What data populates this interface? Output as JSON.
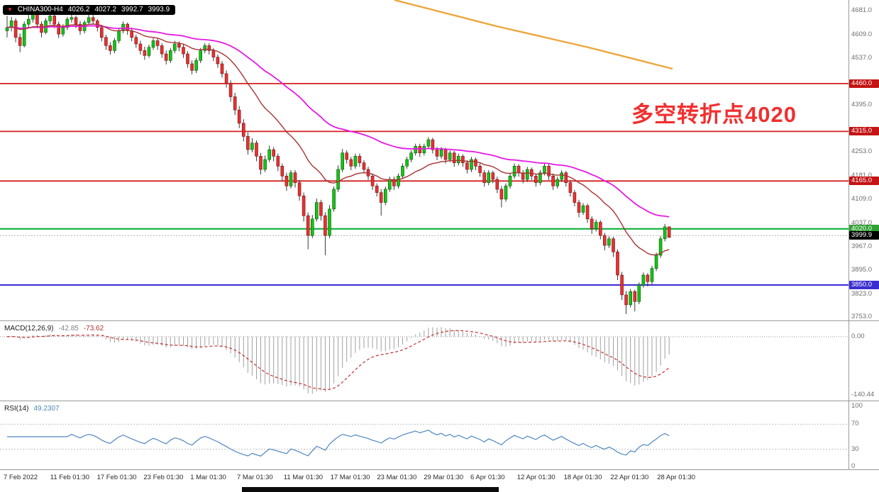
{
  "header": {
    "symbol": "CHINA300-H4",
    "open": "4026.2",
    "high": "4027.2",
    "low": "3992.7",
    "close": "3993.9"
  },
  "annotation": {
    "text": "多空转折点4020",
    "color": "#f12f2f"
  },
  "price_axis": {
    "ticks": [
      {
        "value": 4681,
        "label": "4681.0"
      },
      {
        "value": 4609,
        "label": "4609.0"
      },
      {
        "value": 4537,
        "label": "4537.0"
      },
      {
        "value": 4395,
        "label": "4395.0"
      },
      {
        "value": 4253,
        "label": "4253.0"
      },
      {
        "value": 4181,
        "label": "4181.0"
      },
      {
        "value": 4109,
        "label": "4109.0"
      },
      {
        "value": 4037,
        "label": "4037.0"
      },
      {
        "value": 3967,
        "label": "3967.0"
      },
      {
        "value": 3895,
        "label": "3895.0"
      },
      {
        "value": 3823,
        "label": "3823.0"
      },
      {
        "value": 3753,
        "label": "3753.0"
      }
    ],
    "current": {
      "price": 3999.9,
      "label": "3999.9",
      "badge": "#000000"
    }
  },
  "levels": [
    {
      "price": 4460,
      "label": "4460.0",
      "color": "#d42020",
      "badge": "#c41414",
      "width": 1.8
    },
    {
      "price": 4315,
      "label": "4315.0",
      "color": "#d42020",
      "badge": "#c41414",
      "width": 1.8
    },
    {
      "price": 4165,
      "label": "4165.0",
      "color": "#d42020",
      "badge": "#c41414",
      "width": 1.8
    },
    {
      "price": 4020,
      "label": "4020.0",
      "color": "#0faf3c",
      "badge": "#2fa133",
      "width": 2.2
    },
    {
      "price": 3850,
      "label": "3850.0",
      "color": "#4634d8",
      "badge": "#3b2ed0",
      "width": 2.2
    }
  ],
  "time_axis": {
    "labels": [
      "7 Feb 2022",
      "11 Feb 01:30",
      "17 Feb 01:30",
      "23 Feb 01:30",
      "1 Mar 01:30",
      "7 Mar 01:30",
      "11 Mar 01:30",
      "17 Mar 01:30",
      "23 Mar 01:30",
      "29 Mar 01:30",
      "6 Apr 01:30",
      "12 Apr 01:30",
      "18 Apr 01:30",
      "22 Apr 01:30",
      "28 Apr 01:30"
    ]
  },
  "macd_panel": {
    "label": "MACD(12,26,9)",
    "value_main": "-42.85",
    "value_signal": "-73.62",
    "axis_zero": "0.00",
    "axis_min": "-140.44",
    "fast": 12,
    "slow": 26,
    "signal_period": 9
  },
  "rsi_panel": {
    "label": "RSI(14)",
    "value": "49.2307",
    "period": 14,
    "level_lines": [
      70,
      30
    ],
    "axis": [
      {
        "value": 100,
        "label": "100"
      },
      {
        "value": 70,
        "label": "70"
      },
      {
        "value": 30,
        "label": "30"
      },
      {
        "value": 0,
        "label": "0"
      }
    ]
  },
  "chart_data": {
    "type": "candlestick",
    "symbol": "CHINA300",
    "timeframe": "H4",
    "title": "CHINA300-H4",
    "price_range": [
      3753,
      4681
    ],
    "support_resistance": [
      4460,
      4315,
      4165,
      4020,
      3850
    ],
    "last_price": 3999.9,
    "ohlc_current": [
      4026.2,
      4027.2,
      3992.7,
      3993.9
    ],
    "ma_fast_period": 20,
    "ma_slow_period": 55,
    "trendline_color": "#eda53a",
    "candles": [
      [
        4620,
        4665,
        4600,
        4630
      ],
      [
        4630,
        4662,
        4618,
        4650
      ],
      [
        4650,
        4658,
        4585,
        4600
      ],
      [
        4600,
        4612,
        4555,
        4575
      ],
      [
        4575,
        4648,
        4570,
        4640
      ],
      [
        4640,
        4668,
        4628,
        4655
      ],
      [
        4655,
        4681,
        4645,
        4670
      ],
      [
        4670,
        4675,
        4628,
        4640
      ],
      [
        4640,
        4648,
        4600,
        4615
      ],
      [
        4615,
        4658,
        4610,
        4650
      ],
      [
        4650,
        4675,
        4640,
        4665
      ],
      [
        4665,
        4670,
        4628,
        4640
      ],
      [
        4640,
        4648,
        4598,
        4610
      ],
      [
        4610,
        4640,
        4602,
        4630
      ],
      [
        4630,
        4662,
        4622,
        4655
      ],
      [
        4655,
        4672,
        4645,
        4660
      ],
      [
        4660,
        4666,
        4628,
        4640
      ],
      [
        4640,
        4650,
        4608,
        4620
      ],
      [
        4620,
        4652,
        4612,
        4645
      ],
      [
        4645,
        4670,
        4638,
        4660
      ],
      [
        4660,
        4668,
        4640,
        4650
      ],
      [
        4650,
        4656,
        4618,
        4630
      ],
      [
        4630,
        4638,
        4588,
        4600
      ],
      [
        4600,
        4608,
        4562,
        4575
      ],
      [
        4575,
        4585,
        4548,
        4560
      ],
      [
        4560,
        4598,
        4552,
        4590
      ],
      [
        4590,
        4628,
        4582,
        4620
      ],
      [
        4620,
        4648,
        4612,
        4640
      ],
      [
        4640,
        4645,
        4608,
        4620
      ],
      [
        4620,
        4630,
        4588,
        4600
      ],
      [
        4600,
        4608,
        4568,
        4580
      ],
      [
        4580,
        4590,
        4548,
        4560
      ],
      [
        4560,
        4572,
        4532,
        4545
      ],
      [
        4545,
        4578,
        4538,
        4570
      ],
      [
        4570,
        4598,
        4562,
        4590
      ],
      [
        4590,
        4596,
        4562,
        4575
      ],
      [
        4575,
        4582,
        4538,
        4550
      ],
      [
        4550,
        4560,
        4518,
        4530
      ],
      [
        4530,
        4568,
        4522,
        4560
      ],
      [
        4560,
        4590,
        4552,
        4580
      ],
      [
        4580,
        4588,
        4558,
        4570
      ],
      [
        4570,
        4578,
        4538,
        4550
      ],
      [
        4550,
        4558,
        4508,
        4520
      ],
      [
        4520,
        4530,
        4488,
        4500
      ],
      [
        4500,
        4538,
        4492,
        4530
      ],
      [
        4530,
        4568,
        4522,
        4560
      ],
      [
        4560,
        4582,
        4552,
        4575
      ],
      [
        4575,
        4582,
        4548,
        4560
      ],
      [
        4560,
        4568,
        4528,
        4540
      ],
      [
        4540,
        4548,
        4508,
        4520
      ],
      [
        4520,
        4528,
        4478,
        4490
      ],
      [
        4490,
        4500,
        4448,
        4460
      ],
      [
        4460,
        4470,
        4405,
        4420
      ],
      [
        4420,
        4432,
        4365,
        4380
      ],
      [
        4380,
        4392,
        4325,
        4340
      ],
      [
        4340,
        4352,
        4285,
        4300
      ],
      [
        4300,
        4312,
        4245,
        4260
      ],
      [
        4260,
        4295,
        4252,
        4280
      ],
      [
        4280,
        4288,
        4225,
        4240
      ],
      [
        4240,
        4250,
        4185,
        4200
      ],
      [
        4200,
        4242,
        4192,
        4230
      ],
      [
        4230,
        4272,
        4222,
        4260
      ],
      [
        4260,
        4268,
        4225,
        4240
      ],
      [
        4240,
        4248,
        4195,
        4210
      ],
      [
        4210,
        4218,
        4165,
        4180
      ],
      [
        4180,
        4190,
        4135,
        4150
      ],
      [
        4150,
        4198,
        4142,
        4190
      ],
      [
        4190,
        4198,
        4145,
        4160
      ],
      [
        4160,
        4168,
        4105,
        4120
      ],
      [
        4120,
        4130,
        4042,
        4060
      ],
      [
        4060,
        4070,
        3958,
        4000
      ],
      [
        4000,
        4062,
        3992,
        4050
      ],
      [
        4050,
        4112,
        4042,
        4100
      ],
      [
        4100,
        4108,
        4045,
        4060
      ],
      [
        4060,
        4070,
        3940,
        4000
      ],
      [
        4000,
        4092,
        3992,
        4080
      ],
      [
        4080,
        4148,
        4072,
        4140
      ],
      [
        4140,
        4212,
        4132,
        4200
      ],
      [
        4200,
        4262,
        4192,
        4250
      ],
      [
        4250,
        4258,
        4218,
        4230
      ],
      [
        4230,
        4238,
        4198,
        4210
      ],
      [
        4210,
        4248,
        4202,
        4240
      ],
      [
        4240,
        4248,
        4208,
        4220
      ],
      [
        4220,
        4228,
        4188,
        4200
      ],
      [
        4200,
        4208,
        4168,
        4180
      ],
      [
        4180,
        4188,
        4138,
        4150
      ],
      [
        4150,
        4158,
        4118,
        4130
      ],
      [
        4130,
        4140,
        4060,
        4100
      ],
      [
        4100,
        4148,
        4092,
        4140
      ],
      [
        4140,
        4178,
        4132,
        4170
      ],
      [
        4170,
        4178,
        4138,
        4150
      ],
      [
        4150,
        4188,
        4142,
        4180
      ],
      [
        4180,
        4218,
        4172,
        4210
      ],
      [
        4210,
        4238,
        4202,
        4230
      ],
      [
        4230,
        4258,
        4222,
        4250
      ],
      [
        4250,
        4278,
        4242,
        4270
      ],
      [
        4270,
        4278,
        4238,
        4250
      ],
      [
        4250,
        4278,
        4242,
        4270
      ],
      [
        4270,
        4298,
        4262,
        4290
      ],
      [
        4290,
        4296,
        4248,
        4260
      ],
      [
        4260,
        4268,
        4228,
        4240
      ],
      [
        4240,
        4268,
        4232,
        4260
      ],
      [
        4260,
        4266,
        4218,
        4230
      ],
      [
        4230,
        4258,
        4222,
        4250
      ],
      [
        4250,
        4256,
        4208,
        4220
      ],
      [
        4220,
        4248,
        4212,
        4240
      ],
      [
        4240,
        4246,
        4208,
        4220
      ],
      [
        4220,
        4228,
        4188,
        4200
      ],
      [
        4200,
        4238,
        4192,
        4230
      ],
      [
        4230,
        4236,
        4198,
        4210
      ],
      [
        4210,
        4218,
        4178,
        4190
      ],
      [
        4190,
        4198,
        4148,
        4160
      ],
      [
        4160,
        4198,
        4152,
        4190
      ],
      [
        4190,
        4196,
        4158,
        4170
      ],
      [
        4170,
        4178,
        4128,
        4140
      ],
      [
        4140,
        4150,
        4085,
        4110
      ],
      [
        4110,
        4158,
        4102,
        4150
      ],
      [
        4150,
        4188,
        4142,
        4180
      ],
      [
        4180,
        4218,
        4172,
        4210
      ],
      [
        4210,
        4216,
        4178,
        4190
      ],
      [
        4190,
        4198,
        4158,
        4170
      ],
      [
        4170,
        4208,
        4162,
        4200
      ],
      [
        4200,
        4206,
        4168,
        4180
      ],
      [
        4180,
        4188,
        4148,
        4160
      ],
      [
        4160,
        4198,
        4152,
        4190
      ],
      [
        4190,
        4218,
        4182,
        4210
      ],
      [
        4210,
        4216,
        4168,
        4180
      ],
      [
        4180,
        4188,
        4138,
        4150
      ],
      [
        4150,
        4178,
        4142,
        4170
      ],
      [
        4170,
        4198,
        4162,
        4190
      ],
      [
        4190,
        4196,
        4148,
        4160
      ],
      [
        4160,
        4168,
        4118,
        4130
      ],
      [
        4130,
        4138,
        4088,
        4100
      ],
      [
        4100,
        4108,
        4055,
        4070
      ],
      [
        4070,
        4098,
        4062,
        4090
      ],
      [
        4090,
        4096,
        4038,
        4050
      ],
      [
        4050,
        4058,
        4005,
        4020
      ],
      [
        4020,
        4048,
        4012,
        4040
      ],
      [
        4040,
        4046,
        3988,
        4000
      ],
      [
        4000,
        4008,
        3955,
        3970
      ],
      [
        3970,
        3998,
        3962,
        3990
      ],
      [
        3990,
        3996,
        3935,
        3950
      ],
      [
        3950,
        3958,
        3865,
        3880
      ],
      [
        3880,
        3890,
        3805,
        3820
      ],
      [
        3820,
        3832,
        3762,
        3790
      ],
      [
        3790,
        3838,
        3782,
        3830
      ],
      [
        3830,
        3836,
        3770,
        3800
      ],
      [
        3800,
        3858,
        3792,
        3850
      ],
      [
        3850,
        3888,
        3842,
        3880
      ],
      [
        3880,
        3886,
        3846,
        3860
      ],
      [
        3860,
        3908,
        3852,
        3900
      ],
      [
        3900,
        3948,
        3892,
        3940
      ],
      [
        3940,
        3998,
        3932,
        3990
      ],
      [
        3990,
        4035,
        3982,
        4026
      ],
      [
        4026.2,
        4027.2,
        3992.7,
        3993.9
      ]
    ]
  }
}
